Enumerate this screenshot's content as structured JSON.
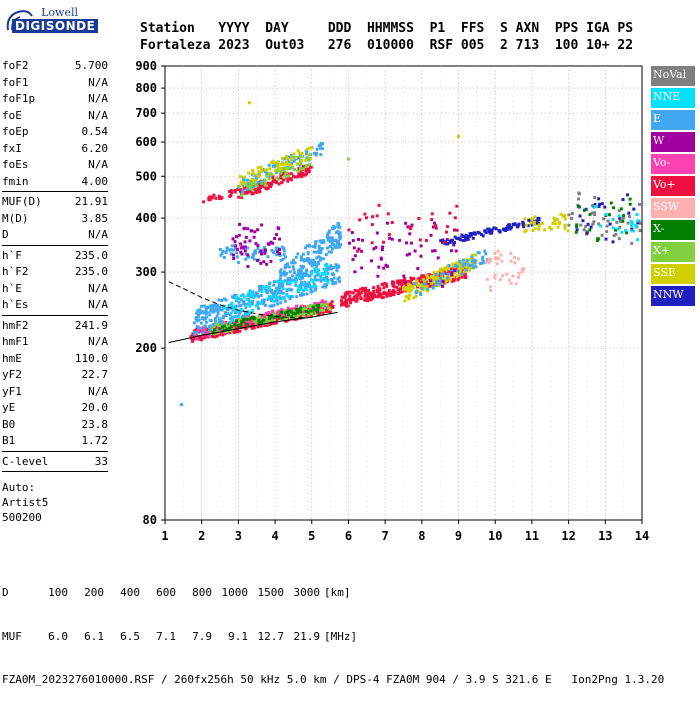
{
  "logo": {
    "top_text": "Lowell",
    "main_text": "DIGISONDE"
  },
  "header": {
    "labels": [
      "Station",
      "YYYY",
      "DAY",
      "DDD",
      "HHMMSS",
      "P1",
      "FFS",
      "S",
      "AXN",
      "PPS",
      "IGA",
      "PS"
    ],
    "values": [
      "Fortaleza",
      "2023",
      "Out03",
      "276",
      "010000",
      "RSF",
      "005",
      "2",
      "713",
      "100",
      "10+",
      "22"
    ]
  },
  "params_groups": [
    [
      {
        "label": "foF2",
        "value": "5.700"
      },
      {
        "label": "foF1",
        "value": "N/A"
      },
      {
        "label": "foF1p",
        "value": "N/A"
      },
      {
        "label": "foE",
        "value": "N/A"
      },
      {
        "label": "foEp",
        "value": "0.54"
      },
      {
        "label": "fxI",
        "value": "6.20"
      },
      {
        "label": "foEs",
        "value": "N/A"
      },
      {
        "label": "fmin",
        "value": "4.00"
      }
    ],
    [
      {
        "label": "MUF(D)",
        "value": "21.91"
      },
      {
        "label": "M(D)",
        "value": "3.85"
      },
      {
        "label": "D",
        "value": "N/A"
      }
    ],
    [
      {
        "label": "h`F",
        "value": "235.0"
      },
      {
        "label": "h`F2",
        "value": "235.0"
      },
      {
        "label": "h`E",
        "value": "N/A"
      },
      {
        "label": "h`Es",
        "value": "N/A"
      }
    ],
    [
      {
        "label": "hmF2",
        "value": "241.9"
      },
      {
        "label": "hmF1",
        "value": "N/A"
      },
      {
        "label": "hmE",
        "value": "110.0"
      },
      {
        "label": "yF2",
        "value": "22.7"
      },
      {
        "label": "yF1",
        "value": "N/A"
      },
      {
        "label": "yE",
        "value": "20.0"
      },
      {
        "label": "B0",
        "value": "23.8"
      },
      {
        "label": "B1",
        "value": "1.72"
      }
    ],
    [
      {
        "label": "C-level",
        "value": "33"
      }
    ]
  ],
  "auto_lines": [
    "Auto:",
    "Artist5",
    "500200"
  ],
  "legend": [
    {
      "label": "NoVal",
      "color": "#808080"
    },
    {
      "label": "NNE",
      "color": "#00e0ff"
    },
    {
      "label": "E",
      "color": "#40a8f0"
    },
    {
      "label": "W",
      "color": "#a000a0"
    },
    {
      "label": "Vo-",
      "color": "#ff40b0"
    },
    {
      "label": "Vo+",
      "color": "#f01040"
    },
    {
      "label": "SSW",
      "color": "#ffb0b0"
    },
    {
      "label": "X-",
      "color": "#008000"
    },
    {
      "label": "X+",
      "color": "#80d040"
    },
    {
      "label": "SSE",
      "color": "#d0d000"
    },
    {
      "label": "NNW",
      "color": "#2020c0"
    }
  ],
  "footer": {
    "d_label": "D",
    "d_values": [
      "100",
      "200",
      "400",
      "600",
      "800",
      "1000",
      "1500",
      "3000",
      "[km]"
    ],
    "muf_label": "MUF",
    "muf_values": [
      "6.0",
      "6.1",
      "6.5",
      "7.1",
      "7.9",
      "9.1",
      "12.7",
      "21.9",
      "[MHz]"
    ],
    "info_line": "FZA0M_2023276010000.RSF / 260fx256h 50 kHz 5.0 km / DPS-4 FZA0M 904 / 3.9 S 321.6 E   Ion2Png 1.3.20"
  },
  "chart_data": {
    "type": "scatter",
    "xlim": [
      1,
      14
    ],
    "ylim": [
      80,
      900
    ],
    "x_scale": "linear",
    "y_scale": "log",
    "xticks": [
      "1",
      "2",
      "3",
      "4",
      "5",
      "6",
      "7",
      "8",
      "9",
      "10",
      "11",
      "12",
      "13",
      "14"
    ],
    "yticks": [
      {
        "value": 80,
        "label": "80"
      },
      {
        "value": 200,
        "label": "200"
      },
      {
        "value": 300,
        "label": "300"
      },
      {
        "value": 400,
        "label": "400"
      },
      {
        "value": 500,
        "label": "500"
      },
      {
        "value": 600,
        "label": "600"
      },
      {
        "value": 700,
        "label": "700"
      },
      {
        "value": 800,
        "label": "800"
      },
      {
        "value": 900,
        "label": "900"
      }
    ],
    "grid": "dotted",
    "series_curves": [
      {
        "kind": "dashed",
        "points": [
          [
            1.1,
            285
          ],
          [
            1.5,
            275
          ],
          [
            2.0,
            262
          ],
          [
            2.5,
            252
          ],
          [
            3.0,
            245
          ],
          [
            3.5,
            240
          ],
          [
            4.0,
            237
          ],
          [
            4.5,
            235
          ],
          [
            5.0,
            235.5
          ]
        ]
      },
      {
        "kind": "solid",
        "points": [
          [
            1.1,
            206
          ],
          [
            2.0,
            214
          ],
          [
            3.0,
            222
          ],
          [
            4.0,
            230
          ],
          [
            5.0,
            236
          ],
          [
            5.7,
            241.9
          ]
        ]
      }
    ],
    "clusters": [
      {
        "color": "#f01040",
        "xr": [
          1.7,
          5.6
        ],
        "y0": 213,
        "y1": 250,
        "slope": 6,
        "n": 420,
        "band": 14
      },
      {
        "color": "#ff40b0",
        "xr": [
          1.8,
          5.4
        ],
        "y0": 216,
        "y1": 252,
        "slope": 6,
        "n": 150,
        "band": 14
      },
      {
        "color": "#80d040",
        "xr": [
          2.2,
          5.5
        ],
        "y0": 220,
        "y1": 250,
        "slope": 6,
        "n": 130,
        "band": 12
      },
      {
        "color": "#008000",
        "xr": [
          2.3,
          5.2
        ],
        "y0": 222,
        "y1": 248,
        "slope": 6,
        "n": 70,
        "band": 10
      },
      {
        "color": "#40a8f0",
        "xr": [
          1.8,
          5.8
        ],
        "y0": 230,
        "y1": 300,
        "slope": 14,
        "n": 360,
        "band": 34
      },
      {
        "color": "#00e0ff",
        "xr": [
          2.6,
          5.5
        ],
        "y0": 240,
        "y1": 300,
        "slope": 10,
        "n": 80,
        "band": 30
      },
      {
        "color": "#40a8f0",
        "xr": [
          4.1,
          5.8
        ],
        "y0": 280,
        "y1": 370,
        "slope": 25,
        "n": 160,
        "band": 50
      },
      {
        "color": "#40a8f0",
        "xr": [
          2.5,
          4.3
        ],
        "y0": 320,
        "y1": 345,
        "slope": 0,
        "n": 60,
        "band": 12
      },
      {
        "color": "#a000a0",
        "xr": [
          2.8,
          4.2
        ],
        "y0": 320,
        "y1": 380,
        "slope": 0,
        "n": 55,
        "band": 30
      },
      {
        "color": "#f01040",
        "xr": [
          2.0,
          3.5
        ],
        "y0": 440,
        "y1": 470,
        "slope": 20,
        "n": 40,
        "band": 15
      },
      {
        "color": "#f01040",
        "xr": [
          3.0,
          5.0
        ],
        "y0": 455,
        "y1": 520,
        "slope": 28,
        "n": 110,
        "band": 28
      },
      {
        "color": "#40a8f0",
        "xr": [
          3.0,
          5.3
        ],
        "y0": 470,
        "y1": 580,
        "slope": 35,
        "n": 90,
        "band": 40
      },
      {
        "color": "#d0d000",
        "xr": [
          3.0,
          5.0
        ],
        "y0": 480,
        "y1": 570,
        "slope": 32,
        "n": 70,
        "band": 40
      },
      {
        "color": "#80d040",
        "xr": [
          3.0,
          5.0
        ],
        "y0": 460,
        "y1": 540,
        "slope": 28,
        "n": 45,
        "band": 30
      },
      {
        "color": "#f01040",
        "xr": [
          5.8,
          9.2
        ],
        "y0": 258,
        "y1": 300,
        "slope": 7,
        "n": 280,
        "band": 20
      },
      {
        "color": "#d0d000",
        "xr": [
          7.5,
          9.5
        ],
        "y0": 265,
        "y1": 320,
        "slope": 8,
        "n": 160,
        "band": 25
      },
      {
        "color": "#40a8f0",
        "xr": [
          7.8,
          9.8
        ],
        "y0": 270,
        "y1": 330,
        "slope": 10,
        "n": 60,
        "band": 25
      },
      {
        "color": "#a000a0",
        "xr": [
          6.0,
          9.0
        ],
        "y0": 280,
        "y1": 380,
        "slope": 0,
        "n": 60,
        "band": 40
      },
      {
        "color": "#2020c0",
        "xr": [
          8.5,
          11.2
        ],
        "y0": 350,
        "y1": 395,
        "slope": 12,
        "n": 110,
        "band": 12
      },
      {
        "color": "#d0d000",
        "xr": [
          10.8,
          12.0
        ],
        "y0": 375,
        "y1": 405,
        "slope": 0,
        "n": 40,
        "band": 12
      },
      {
        "color": "#ffb0b0",
        "xr": [
          9.7,
          10.8
        ],
        "y0": 280,
        "y1": 330,
        "slope": 0,
        "n": 35,
        "band": 20
      },
      {
        "color": "#808080",
        "xr": [
          12.0,
          14.0
        ],
        "y0": 360,
        "y1": 450,
        "slope": 0,
        "n": 45,
        "band": 40
      },
      {
        "color": "#2020c0",
        "xr": [
          12.2,
          13.9
        ],
        "y0": 360,
        "y1": 450,
        "slope": 0,
        "n": 25,
        "band": 40
      },
      {
        "color": "#008000",
        "xr": [
          12.2,
          13.9
        ],
        "y0": 360,
        "y1": 450,
        "slope": 0,
        "n": 20,
        "band": 40
      },
      {
        "color": "#00e0ff",
        "xr": [
          12.5,
          14.0
        ],
        "y0": 355,
        "y1": 420,
        "slope": 0,
        "n": 20,
        "band": 30
      },
      {
        "color": "#f01040",
        "xr": [
          6.0,
          9.0
        ],
        "y0": 340,
        "y1": 420,
        "slope": 0,
        "n": 30,
        "band": 40
      }
    ],
    "isolated_points": [
      {
        "x": 1.45,
        "y": 148,
        "color": "#40a8f0"
      },
      {
        "x": 3.3,
        "y": 740,
        "color": "#d0d000"
      },
      {
        "x": 9.0,
        "y": 618,
        "color": "#d0d000"
      },
      {
        "x": 6.0,
        "y": 548,
        "color": "#80d040"
      }
    ]
  }
}
